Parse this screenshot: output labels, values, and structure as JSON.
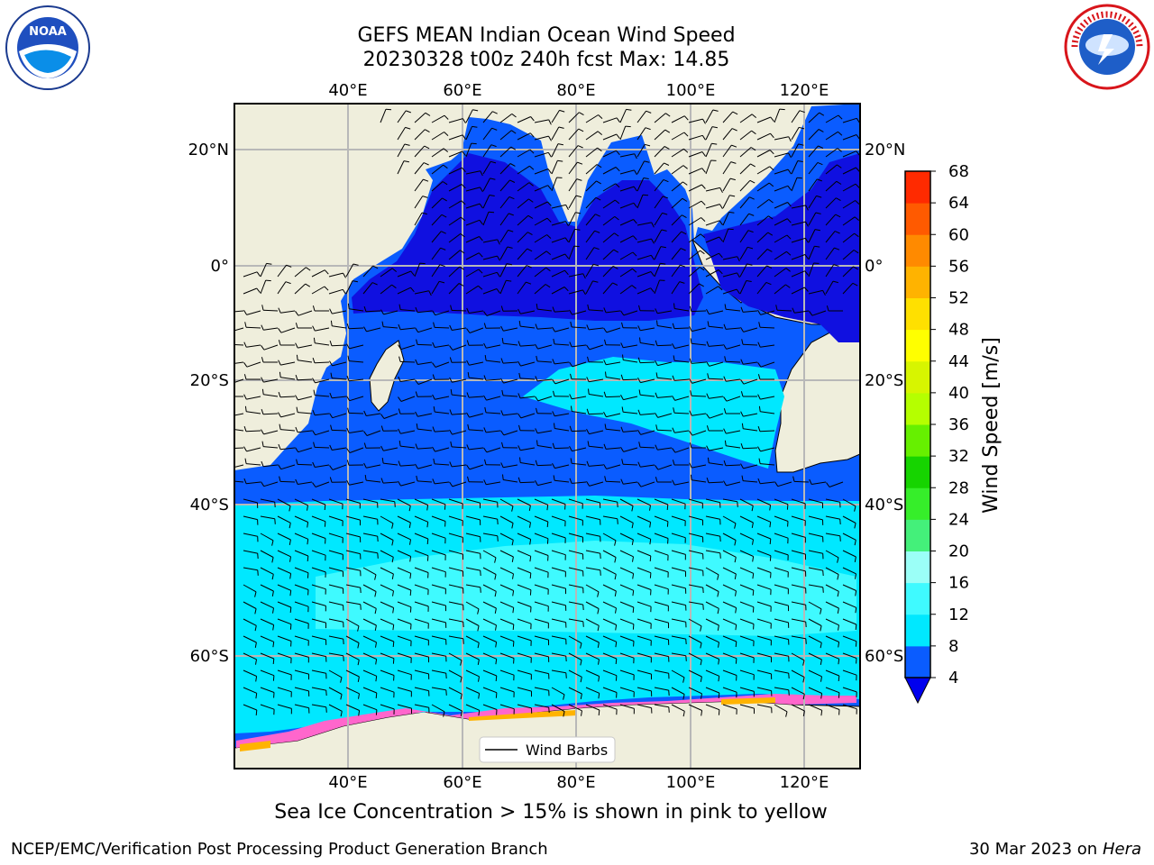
{
  "header": {
    "title_line1": "GEFS MEAN Indian Ocean Wind Speed",
    "title_line2": "20230328 t00z 240h fcst   Max: 14.85"
  },
  "logos": {
    "left_label": "NOAA",
    "left_ring_text": "NATIONAL OCEANIC AND ATMOSPHERIC ADMINISTRATION · U.S. DEPARTMENT OF COMMERCE",
    "right_ring_text": "NATIONAL WEATHER SERVICE"
  },
  "map": {
    "lon_ticks": [
      "40°E",
      "60°E",
      "80°E",
      "100°E",
      "120°E"
    ],
    "lat_ticks": [
      "20°N",
      "0°",
      "20°S",
      "40°S",
      "60°S"
    ],
    "legend_label": "Wind Barbs"
  },
  "colorbar": {
    "label": "Wind Speed [m/s]",
    "ticks": [
      "4",
      "8",
      "12",
      "16",
      "20",
      "24",
      "28",
      "32",
      "36",
      "40",
      "44",
      "48",
      "52",
      "56",
      "60",
      "64",
      "68"
    ],
    "colors": [
      "#0a5cff",
      "#00e8ff",
      "#3ffaff",
      "#9bfff7",
      "#44f07a",
      "#36ee2a",
      "#16d400",
      "#66f000",
      "#b5ff00",
      "#d7f500",
      "#ffff00",
      "#ffe000",
      "#ffb300",
      "#ff8a00",
      "#ff5a00",
      "#ff2a00",
      "#ff0000"
    ],
    "under_color": "#0000ee"
  },
  "caption": "Sea Ice Concentration > 15% is shown in pink to yellow",
  "footer": {
    "left": "NCEP/EMC/Verification Post Processing Product Generation Branch",
    "date": "30 Mar 2023 on",
    "machine": "Hera"
  },
  "colors": {
    "land": "#efeedc",
    "ocean_low": "#0a5cff",
    "ocean_calm": "#1010e0",
    "ocean_mid": "#00e8ff",
    "ocean_high": "#3ffaff",
    "ice": "#ff66cc",
    "ice_high": "#ffb300"
  }
}
